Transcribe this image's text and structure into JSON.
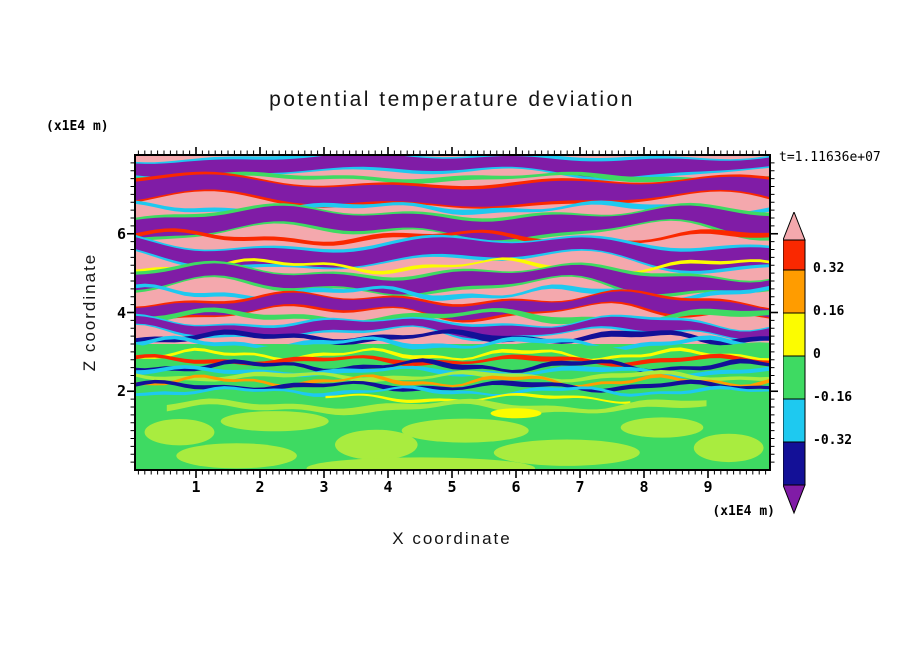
{
  "title": "potential temperature deviation",
  "timestamp": "t=1.11636e+07",
  "axes": {
    "x_label": "X coordinate",
    "y_label": "Z coordinate",
    "x_unit": "(x1E4 m)",
    "y_unit": "(x1E4 m)",
    "x_ticks": [
      "1",
      "2",
      "3",
      "4",
      "5",
      "6",
      "7",
      "8",
      "9"
    ],
    "y_ticks": [
      "2",
      "4",
      "6"
    ]
  },
  "colorbar": {
    "tick_labels": [
      "0.32",
      "0.16",
      "0",
      "-0.16",
      "-0.32"
    ],
    "arrow_top_color": "#f4a8ad",
    "arrow_bottom_color": "#801ca6",
    "segment_colors_top_to_bottom": [
      "#fa2800",
      "#ff9c00",
      "#fcfc00",
      "#3eda62",
      "#1ec9f0",
      "#131097"
    ]
  },
  "chart_data": {
    "type": "heatmap",
    "subtype": "filled-contour",
    "title": "potential temperature deviation",
    "xlabel": "X coordinate (x1E4 m)",
    "ylabel": "Z coordinate (x1E4 m)",
    "x_range": [
      0,
      10
    ],
    "z_range": [
      0,
      8
    ],
    "x_ticks": [
      1,
      2,
      3,
      4,
      5,
      6,
      7,
      8,
      9
    ],
    "z_ticks": [
      2,
      4,
      6
    ],
    "time_label": "t=1.11636e+07",
    "contour_levels": [
      -0.32,
      -0.16,
      0,
      0.16,
      0.32
    ],
    "level_colors_low_to_high": [
      "#801ca6",
      "#131097",
      "#1ec9f0",
      "#3eda62",
      "#fcfc00",
      "#ff9c00",
      "#fa2800",
      "#f4a8ad"
    ],
    "legend_position": "right",
    "grid": false,
    "field_description": "horizontally stratified wave field: alternating pink (>0.32) and purple (<-0.32) wavy layers aloft with thin green/cyan/red/yellow contour filaments, a dense zone of fine multicolor filaments near mid-height, and a broad green region (-0.16 to 0) with chartreuse patches below z ~ 2x1E4 m",
    "render": {
      "zones": [
        {
          "y0": 0.0,
          "y1": 0.6,
          "c": "#f4a8ad"
        },
        {
          "y0": 0.6,
          "y1": 1.0,
          "c": "#3eda62"
        }
      ],
      "bands": [
        {
          "y": 0.03,
          "th": 13,
          "a1": 4,
          "k1": 1.6,
          "p1": 0.05,
          "a2": 2,
          "c": "#801ca6",
          "fr": "#1ec9f0",
          "fw": 5
        },
        {
          "y": 0.072,
          "th": 4,
          "a1": 3,
          "k1": 2.2,
          "p1": 0.3,
          "c": "#3eda62"
        },
        {
          "y": 0.118,
          "th": 17,
          "a1": 6,
          "k1": 1.4,
          "p1": 0.55,
          "a2": 3,
          "c": "#801ca6",
          "fr": "#fa2800",
          "fw": 5
        },
        {
          "y": 0.168,
          "th": 4,
          "a1": 4,
          "k1": 2.6,
          "p1": 0.8,
          "c": "#1ec9f0"
        },
        {
          "y": 0.215,
          "th": 16,
          "a1": 7,
          "k1": 1.8,
          "p1": 0.25,
          "a2": 3,
          "c": "#801ca6",
          "fr": "#3eda62",
          "fw": 5
        },
        {
          "y": 0.262,
          "th": 4,
          "a1": 5,
          "k1": 2.3,
          "p1": 0.6,
          "c": "#fa2800"
        },
        {
          "y": 0.308,
          "th": 15,
          "a1": 8,
          "k1": 1.5,
          "p1": 0.85,
          "a2": 4,
          "c": "#801ca6",
          "fr": "#1ec9f0",
          "fw": 5
        },
        {
          "y": 0.352,
          "th": 3,
          "a1": 5,
          "k1": 2.8,
          "p1": 0.15,
          "c": "#fcfc00"
        },
        {
          "y": 0.396,
          "th": 13,
          "a1": 7,
          "k1": 2.0,
          "p1": 0.45,
          "a2": 3,
          "c": "#801ca6",
          "fr": "#3eda62",
          "fw": 5
        },
        {
          "y": 0.438,
          "th": 4,
          "a1": 5,
          "k1": 3.0,
          "p1": 0.7,
          "c": "#1ec9f0"
        },
        {
          "y": 0.478,
          "th": 11,
          "a1": 6,
          "k1": 2.2,
          "p1": 0.1,
          "a2": 3,
          "c": "#801ca6",
          "fr": "#fa2800",
          "fw": 4
        },
        {
          "y": 0.514,
          "th": 5,
          "a1": 5,
          "k1": 2.5,
          "p1": 0.4,
          "c": "#3eda62"
        },
        {
          "y": 0.548,
          "th": 9,
          "a1": 5,
          "k1": 2.6,
          "p1": 0.75,
          "a2": 2,
          "c": "#801ca6",
          "fr": "#1ec9f0",
          "fw": 4
        },
        {
          "y": 0.578,
          "th": 5,
          "a1": 4,
          "k1": 3.2,
          "p1": 0.2,
          "c": "#131097"
        },
        {
          "y": 0.598,
          "th": 4,
          "a1": 4,
          "k1": 3.6,
          "p1": 0.5,
          "c": "#1ec9f0"
        },
        {
          "y": 0.617,
          "th": 5,
          "a1": 3,
          "k1": 3.0,
          "p1": 0.85,
          "c": "#3eda62"
        },
        {
          "y": 0.634,
          "th": 3,
          "a1": 4,
          "k1": 4.0,
          "p1": 0.3,
          "c": "#fcfc00"
        },
        {
          "y": 0.652,
          "th": 4,
          "a1": 3,
          "k1": 3.4,
          "p1": 0.65,
          "c": "#fa2800"
        },
        {
          "y": 0.67,
          "th": 4,
          "a1": 4,
          "k1": 3.8,
          "p1": 0.05,
          "c": "#131097"
        },
        {
          "y": 0.687,
          "th": 4,
          "a1": 3,
          "k1": 3.2,
          "p1": 0.45,
          "c": "#1ec9f0"
        },
        {
          "y": 0.703,
          "th": 4,
          "a1": 3,
          "k1": 3.5,
          "p1": 0.9,
          "c": "#a9ec3f"
        },
        {
          "y": 0.718,
          "th": 3,
          "a1": 4,
          "k1": 4.2,
          "p1": 0.25,
          "c": "#ff9c00"
        },
        {
          "y": 0.734,
          "th": 4,
          "a1": 3,
          "k1": 3.6,
          "p1": 0.6,
          "c": "#131097"
        },
        {
          "y": 0.75,
          "th": 3,
          "a1": 3,
          "k1": 3.9,
          "p1": 0.1,
          "c": "#1ec9f0"
        },
        {
          "y": 0.772,
          "th": 2.5,
          "a1": 3,
          "k1": 3.3,
          "p1": 0.7,
          "x0": 0.3,
          "x1": 0.78,
          "c": "#fcfc00"
        },
        {
          "y": 0.8,
          "th": 6,
          "a1": 4,
          "k1": 2.8,
          "p1": 0.35,
          "x0": 0.05,
          "x1": 0.9,
          "c": "#a9ec3f"
        }
      ],
      "blobs": [
        {
          "x": 0.07,
          "y": 0.88,
          "rx": 0.055,
          "ry": 0.042,
          "c": "#a9ec3f"
        },
        {
          "x": 0.22,
          "y": 0.845,
          "rx": 0.085,
          "ry": 0.032,
          "c": "#a9ec3f"
        },
        {
          "x": 0.16,
          "y": 0.955,
          "rx": 0.095,
          "ry": 0.04,
          "c": "#a9ec3f"
        },
        {
          "x": 0.38,
          "y": 0.92,
          "rx": 0.065,
          "ry": 0.048,
          "c": "#a9ec3f"
        },
        {
          "x": 0.52,
          "y": 0.875,
          "rx": 0.1,
          "ry": 0.038,
          "c": "#a9ec3f"
        },
        {
          "x": 0.68,
          "y": 0.945,
          "rx": 0.115,
          "ry": 0.042,
          "c": "#a9ec3f"
        },
        {
          "x": 0.83,
          "y": 0.865,
          "rx": 0.065,
          "ry": 0.032,
          "c": "#a9ec3f"
        },
        {
          "x": 0.935,
          "y": 0.93,
          "rx": 0.055,
          "ry": 0.045,
          "c": "#a9ec3f"
        },
        {
          "x": 0.45,
          "y": 0.995,
          "rx": 0.18,
          "ry": 0.035,
          "c": "#a9ec3f"
        },
        {
          "x": 0.6,
          "y": 0.82,
          "rx": 0.04,
          "ry": 0.016,
          "c": "#fcfc00"
        }
      ]
    }
  }
}
